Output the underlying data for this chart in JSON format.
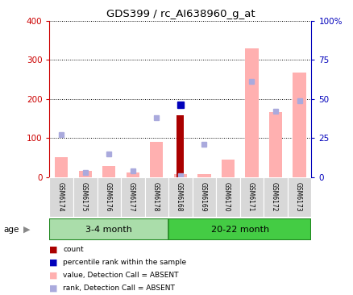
{
  "title": "GDS399 / rc_AI638960_g_at",
  "samples": [
    "GSM6174",
    "GSM6175",
    "GSM6176",
    "GSM6177",
    "GSM6178",
    "GSM6168",
    "GSM6169",
    "GSM6170",
    "GSM6171",
    "GSM6172",
    "GSM6173"
  ],
  "groups": [
    {
      "label": "3-4 month",
      "n": 5
    },
    {
      "label": "20-22 month",
      "n": 6
    }
  ],
  "value_absent": [
    50,
    15,
    28,
    12,
    90,
    8,
    8,
    45,
    330,
    167,
    268
  ],
  "rank_absent_pct": [
    27,
    3,
    15,
    4,
    38,
    1,
    21,
    null,
    61,
    42,
    49
  ],
  "count": [
    null,
    null,
    null,
    null,
    null,
    158,
    null,
    null,
    null,
    null,
    null
  ],
  "percentile_rank_pct": [
    null,
    null,
    null,
    null,
    null,
    46,
    null,
    null,
    null,
    null,
    null
  ],
  "ylim_left": [
    0,
    400
  ],
  "ylim_right": [
    0,
    100
  ],
  "yticks_left": [
    0,
    100,
    200,
    300,
    400
  ],
  "yticks_right": [
    0,
    25,
    50,
    75,
    100
  ],
  "ytick_labels_right": [
    "0",
    "25",
    "50",
    "75",
    "100%"
  ],
  "color_count": "#AA0000",
  "color_percentile": "#0000BB",
  "color_value_absent": "#FFB0B0",
  "color_rank_absent": "#AAAADD",
  "color_left_axis": "#CC0000",
  "color_right_axis": "#0000BB",
  "group_bg_1": "#AADDAA",
  "group_bg_2": "#44CC44",
  "group_border": "#228822",
  "age_label": "age",
  "legend_items": [
    {
      "color": "#AA0000",
      "label": "count"
    },
    {
      "color": "#0000BB",
      "label": "percentile rank within the sample"
    },
    {
      "color": "#FFB0B0",
      "label": "value, Detection Call = ABSENT"
    },
    {
      "color": "#AAAADD",
      "label": "rank, Detection Call = ABSENT"
    }
  ]
}
